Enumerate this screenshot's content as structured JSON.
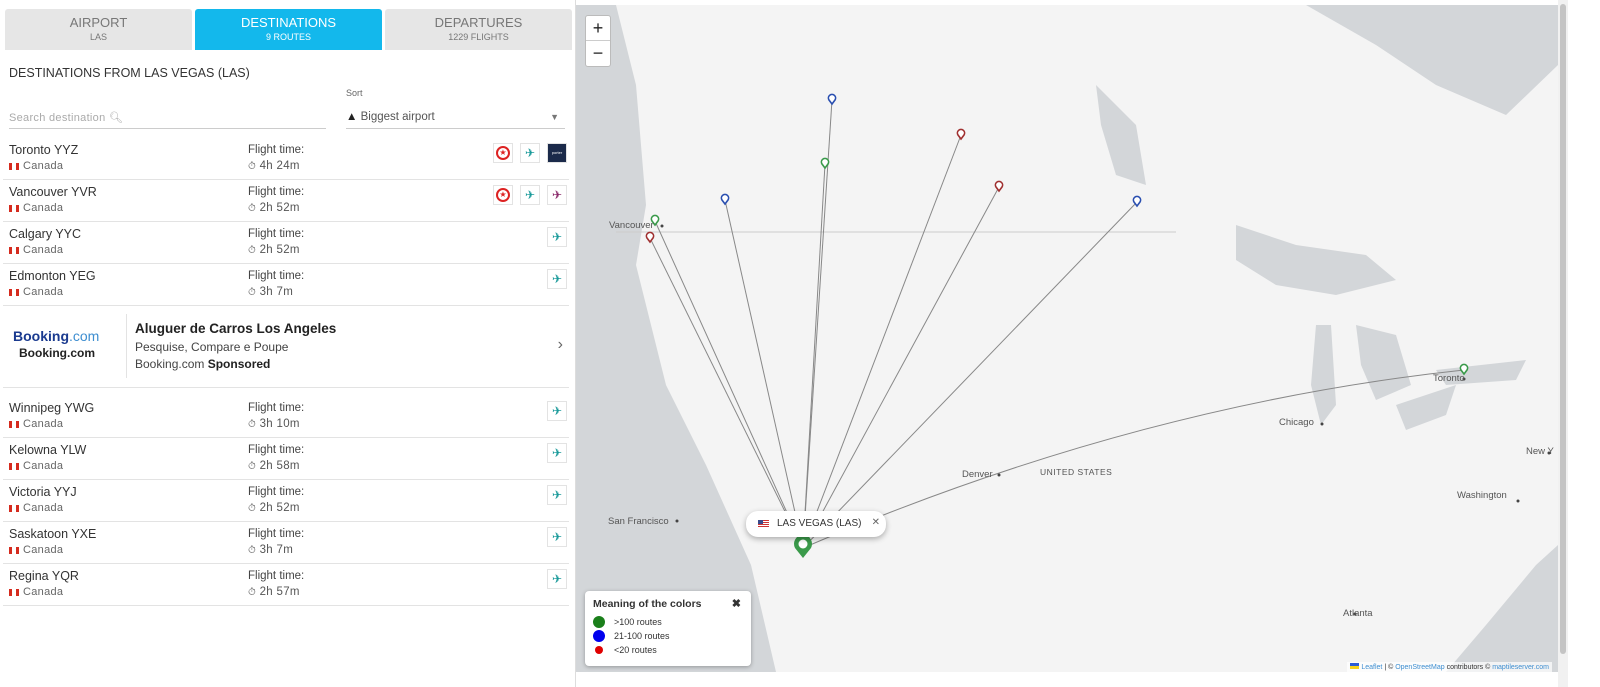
{
  "tabs": [
    {
      "label": "AIRPORT",
      "sub": "LAS"
    },
    {
      "label": "DESTINATIONS",
      "sub": "9 ROUTES"
    },
    {
      "label": "DEPARTURES",
      "sub": "1229 FLIGHTS"
    }
  ],
  "heading": "DESTINATIONS FROM LAS VEGAS (LAS)",
  "search": {
    "placeholder": "Search destination"
  },
  "sort": {
    "label": "Sort",
    "value": "Biggest airport"
  },
  "flight_time_label": "Flight time:",
  "destinations": [
    {
      "city": "Toronto YYZ",
      "country": "Canada",
      "time": "4h 24m",
      "airlines": [
        "air-canada",
        "westjet",
        "porter"
      ]
    },
    {
      "city": "Vancouver YVR",
      "country": "Canada",
      "time": "2h 52m",
      "airlines": [
        "air-canada",
        "westjet",
        "flair"
      ]
    },
    {
      "city": "Calgary YYC",
      "country": "Canada",
      "time": "2h 52m",
      "airlines": [
        "westjet"
      ]
    },
    {
      "city": "Edmonton YEG",
      "country": "Canada",
      "time": "3h 7m",
      "airlines": [
        "westjet"
      ]
    },
    {
      "city": "Winnipeg YWG",
      "country": "Canada",
      "time": "3h 10m",
      "airlines": [
        "westjet"
      ]
    },
    {
      "city": "Kelowna YLW",
      "country": "Canada",
      "time": "2h 58m",
      "airlines": [
        "westjet"
      ]
    },
    {
      "city": "Victoria YYJ",
      "country": "Canada",
      "time": "2h 52m",
      "airlines": [
        "westjet"
      ]
    },
    {
      "city": "Saskatoon YXE",
      "country": "Canada",
      "time": "3h 7m",
      "airlines": [
        "westjet"
      ]
    },
    {
      "city": "Regina YQR",
      "country": "Canada",
      "time": "2h 57m",
      "airlines": [
        "westjet"
      ]
    }
  ],
  "ad": {
    "logo": "Booking.com",
    "brand": "Booking.com",
    "title": "Aluguer de Carros Los Angeles",
    "subtitle": "Pesquise, Compare e Poupe",
    "advertiser": "Booking.com",
    "sponsored": "Sponsored"
  },
  "map": {
    "zoom_in": "+",
    "zoom_out": "−",
    "popup": "LAS VEGAS (LAS)",
    "city_labels": [
      "Vancouver",
      "San Francisco",
      "Denver",
      "UNITED STATES",
      "Chicago",
      "Toronto",
      "New Y",
      "Washington",
      "Atlanta"
    ],
    "legend": {
      "title": "Meaning of the colors",
      "items": [
        {
          "label": ">100 routes",
          "color": "#1a7f1a"
        },
        {
          "label": "21-100 routes",
          "color": "#0000ee"
        },
        {
          "label": "<20 routes",
          "color": "#e00000"
        }
      ]
    },
    "attribution": {
      "leaflet": "Leaflet",
      "sep": " | © ",
      "osm": "OpenStreetMap",
      "contrib": " contributors © ",
      "tiles": "maptileserver.com"
    }
  },
  "colors": {
    "accent": "#13b8ec",
    "green": "#3a9a4a",
    "blue": "#2a4fb0",
    "red": "#a03030"
  }
}
